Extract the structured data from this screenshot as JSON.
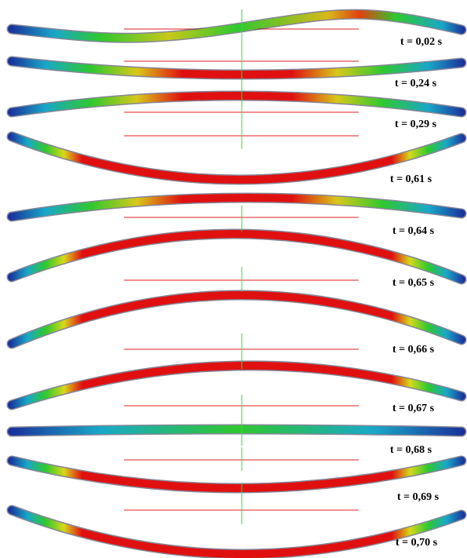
{
  "labels": [
    "t = 0,02 s",
    "t = 0,24 s",
    "t = 0,29 s",
    "t = 0,61 s",
    "t = 0,64 s",
    "t = 0,65 s",
    "t = 0,66 s",
    "t = 0,67 s",
    "t = 0,68 s",
    "t = 0,69 s",
    "t = 0,70 s"
  ]
}
